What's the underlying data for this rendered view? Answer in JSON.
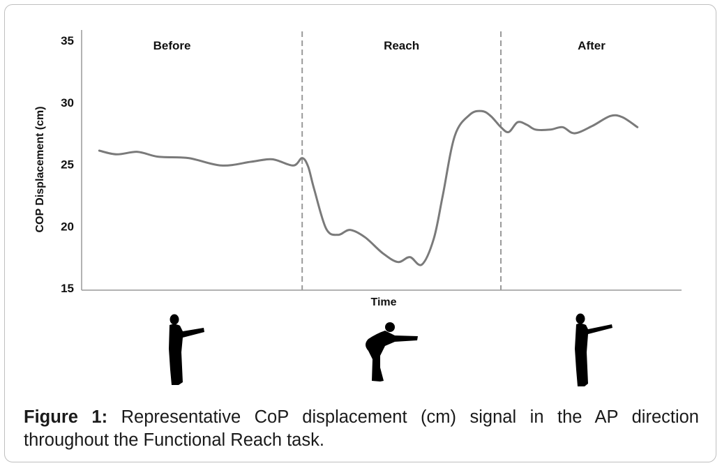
{
  "chart_data": {
    "type": "line",
    "title": "",
    "xlabel": "Time",
    "ylabel": "COP Displacement (cm)",
    "ylim": [
      15,
      35
    ],
    "yticks": [
      "35",
      "30",
      "25",
      "20",
      "15"
    ],
    "x_range": [
      0,
      100
    ],
    "phases": [
      {
        "name": "Before",
        "x_start": 0,
        "x_end": 36.5
      },
      {
        "name": "Reach",
        "x_start": 36.5,
        "x_end": 69.7
      },
      {
        "name": "After",
        "x_start": 69.7,
        "x_end": 100
      }
    ],
    "phase_boundaries": [
      36.5,
      69.7
    ],
    "boundary_style": "dashed",
    "grid": false,
    "series": [
      {
        "color": "#7a7a7a",
        "x": [
          2.6,
          5.5,
          9.0,
          12.5,
          17.5,
          23.0,
          28.0,
          31.5,
          35.0,
          36.5,
          37.5,
          38.5,
          40.5,
          42.5,
          44.5,
          47.0,
          50.0,
          52.5,
          54.5,
          56.5,
          58.5,
          60.0,
          62.0,
          64.5,
          66.5,
          68.0,
          69.7,
          71.0,
          72.5,
          74.0,
          75.5,
          78.0,
          80.0,
          82.0,
          85.0,
          88.0,
          90.0,
          92.5
        ],
        "y": [
          26.1,
          25.8,
          26.0,
          25.6,
          25.5,
          24.9,
          25.2,
          25.4,
          24.9,
          25.5,
          24.8,
          23.0,
          19.8,
          19.3,
          19.7,
          19.1,
          17.8,
          17.1,
          17.5,
          16.9,
          19.0,
          22.5,
          27.3,
          29.0,
          29.3,
          28.9,
          28.0,
          27.6,
          28.4,
          28.2,
          27.8,
          27.8,
          28.0,
          27.5,
          28.1,
          28.9,
          28.8,
          28.0
        ]
      }
    ]
  },
  "caption": {
    "label": "Figure 1:",
    "text": "Representative CoP displacement (cm) signal in the AP direction throughout the Functional Reach task."
  },
  "figures": {
    "before": "standing-reach-silhouette-icon",
    "reach": "bent-forward-reach-silhouette-icon",
    "after": "standing-reach-silhouette-icon"
  },
  "colors": {
    "line": "#7a7a7a",
    "axis": "#999999",
    "dashed": "#999999",
    "silhouette": "#000000"
  }
}
